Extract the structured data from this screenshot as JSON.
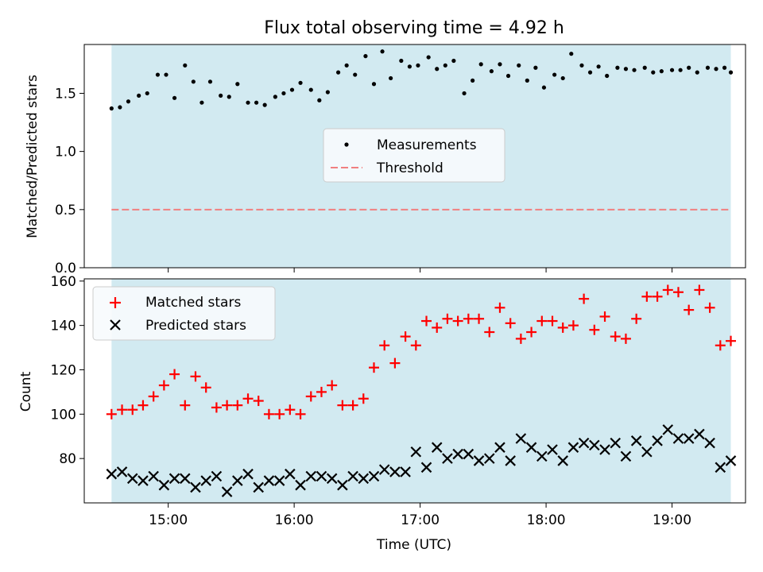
{
  "chart_data": [
    {
      "type": "scatter",
      "title": "Flux total observing time = 4.92 h",
      "ylabel": "Matched/Predicted stars",
      "xlabel": "",
      "xlim": [
        "14:20",
        "19:35"
      ],
      "ylim": [
        0,
        1.92
      ],
      "yticks": [
        "0.0",
        "0.5",
        "1.0",
        "1.5"
      ],
      "shaded_span": [
        "14:33",
        "19:28"
      ],
      "legend_position": "center",
      "colors": {
        "measurements": "#000000",
        "threshold": "#f08080",
        "shade": "#add8e6"
      },
      "threshold": {
        "name": "Threshold",
        "value": 0.5
      },
      "series": [
        {
          "name": "Measurements",
          "x": [
            "14:33",
            "14:37",
            "14:41",
            "14:46",
            "14:50",
            "14:55",
            "14:59",
            "15:03",
            "15:08",
            "15:12",
            "15:16",
            "15:20",
            "15:25",
            "15:29",
            "15:33",
            "15:38",
            "15:42",
            "15:46",
            "15:51",
            "15:55",
            "15:59",
            "16:03",
            "16:08",
            "16:12",
            "16:16",
            "16:21",
            "16:25",
            "16:29",
            "16:34",
            "16:38",
            "16:42",
            "16:46",
            "16:51",
            "16:55",
            "16:59",
            "17:04",
            "17:08",
            "17:12",
            "17:16",
            "17:21",
            "17:25",
            "17:29",
            "17:34",
            "17:38",
            "17:42",
            "17:47",
            "17:51",
            "17:55",
            "17:59",
            "18:04",
            "18:08",
            "18:12",
            "18:17",
            "18:21",
            "18:25",
            "18:29",
            "18:34",
            "18:38",
            "18:42",
            "18:47",
            "18:51",
            "18:55",
            "19:00",
            "19:04",
            "19:08",
            "19:12",
            "19:17",
            "19:21",
            "19:25",
            "19:28"
          ],
          "y": [
            1.37,
            1.38,
            1.43,
            1.48,
            1.5,
            1.66,
            1.66,
            1.46,
            1.74,
            1.6,
            1.42,
            1.6,
            1.48,
            1.47,
            1.58,
            1.42,
            1.42,
            1.4,
            1.47,
            1.5,
            1.53,
            1.59,
            1.53,
            1.44,
            1.51,
            1.68,
            1.74,
            1.66,
            1.82,
            1.58,
            1.86,
            1.63,
            1.78,
            1.73,
            1.74,
            1.81,
            1.71,
            1.74,
            1.78,
            1.5,
            1.61,
            1.75,
            1.69,
            1.75,
            1.65,
            1.74,
            1.61,
            1.72,
            1.55,
            1.66,
            1.63,
            1.84,
            1.74,
            1.68,
            1.73,
            1.65,
            1.72,
            1.71,
            1.7,
            1.72,
            1.68,
            1.69,
            1.7,
            1.7,
            1.72,
            1.68,
            1.72,
            1.71,
            1.72,
            1.68
          ]
        }
      ]
    },
    {
      "type": "scatter",
      "title": "",
      "ylabel": "Count",
      "xlabel": "Time (UTC)",
      "xlim": [
        "14:20",
        "19:35"
      ],
      "ylim": [
        60,
        161
      ],
      "yticks": [
        "80",
        "100",
        "120",
        "140",
        "160"
      ],
      "xticks": [
        "15:00",
        "16:00",
        "17:00",
        "18:00",
        "19:00"
      ],
      "shaded_span": [
        "14:33",
        "19:28"
      ],
      "legend_position": "upper left",
      "colors": {
        "matched": "#ff0000",
        "predicted": "#000000",
        "shade": "#add8e6"
      },
      "series": [
        {
          "name": "Matched stars",
          "x": [
            "14:33",
            "14:38",
            "14:43",
            "14:48",
            "14:53",
            "14:58",
            "15:03",
            "15:08",
            "15:13",
            "15:18",
            "15:23",
            "15:28",
            "15:33",
            "15:38",
            "15:43",
            "15:48",
            "15:53",
            "15:58",
            "16:03",
            "16:08",
            "16:13",
            "16:18",
            "16:23",
            "16:28",
            "16:33",
            "16:38",
            "16:43",
            "16:48",
            "16:53",
            "16:58",
            "17:03",
            "17:08",
            "17:13",
            "17:18",
            "17:23",
            "17:28",
            "17:33",
            "17:38",
            "17:43",
            "17:48",
            "17:53",
            "17:58",
            "18:03",
            "18:08",
            "18:13",
            "18:18",
            "18:23",
            "18:28",
            "18:33",
            "18:38",
            "18:43",
            "18:48",
            "18:53",
            "18:58",
            "19:03",
            "19:08",
            "19:13",
            "19:18",
            "19:23",
            "19:28"
          ],
          "y": [
            100,
            102,
            102,
            104,
            108,
            113,
            118,
            104,
            117,
            112,
            103,
            104,
            104,
            107,
            106,
            100,
            100,
            102,
            100,
            108,
            110,
            113,
            104,
            104,
            107,
            121,
            131,
            123,
            135,
            131,
            142,
            139,
            143,
            142,
            143,
            143,
            137,
            148,
            141,
            134,
            137,
            142,
            142,
            139,
            140,
            152,
            138,
            144,
            135,
            134,
            143,
            153,
            153,
            156,
            155,
            147,
            156,
            148,
            131,
            133
          ]
        },
        {
          "name": "Predicted stars",
          "x": [
            "14:33",
            "14:38",
            "14:43",
            "14:48",
            "14:53",
            "14:58",
            "15:03",
            "15:08",
            "15:13",
            "15:18",
            "15:23",
            "15:28",
            "15:33",
            "15:38",
            "15:43",
            "15:48",
            "15:53",
            "15:58",
            "16:03",
            "16:08",
            "16:13",
            "16:18",
            "16:23",
            "16:28",
            "16:33",
            "16:38",
            "16:43",
            "16:48",
            "16:53",
            "16:58",
            "17:03",
            "17:08",
            "17:13",
            "17:18",
            "17:23",
            "17:28",
            "17:33",
            "17:38",
            "17:43",
            "17:48",
            "17:53",
            "17:58",
            "18:03",
            "18:08",
            "18:13",
            "18:18",
            "18:23",
            "18:28",
            "18:33",
            "18:38",
            "18:43",
            "18:48",
            "18:53",
            "18:58",
            "19:03",
            "19:08",
            "19:13",
            "19:18",
            "19:23",
            "19:28"
          ],
          "y": [
            73,
            74,
            71,
            70,
            72,
            68,
            71,
            71,
            67,
            70,
            72,
            65,
            70,
            73,
            67,
            70,
            70,
            73,
            68,
            72,
            72,
            71,
            68,
            72,
            71,
            72,
            75,
            74,
            74,
            83,
            76,
            85,
            80,
            82,
            82,
            79,
            80,
            85,
            79,
            89,
            85,
            81,
            84,
            79,
            85,
            87,
            86,
            84,
            87,
            81,
            88,
            83,
            88,
            93,
            89,
            89,
            91,
            87,
            76,
            79
          ]
        }
      ]
    }
  ]
}
